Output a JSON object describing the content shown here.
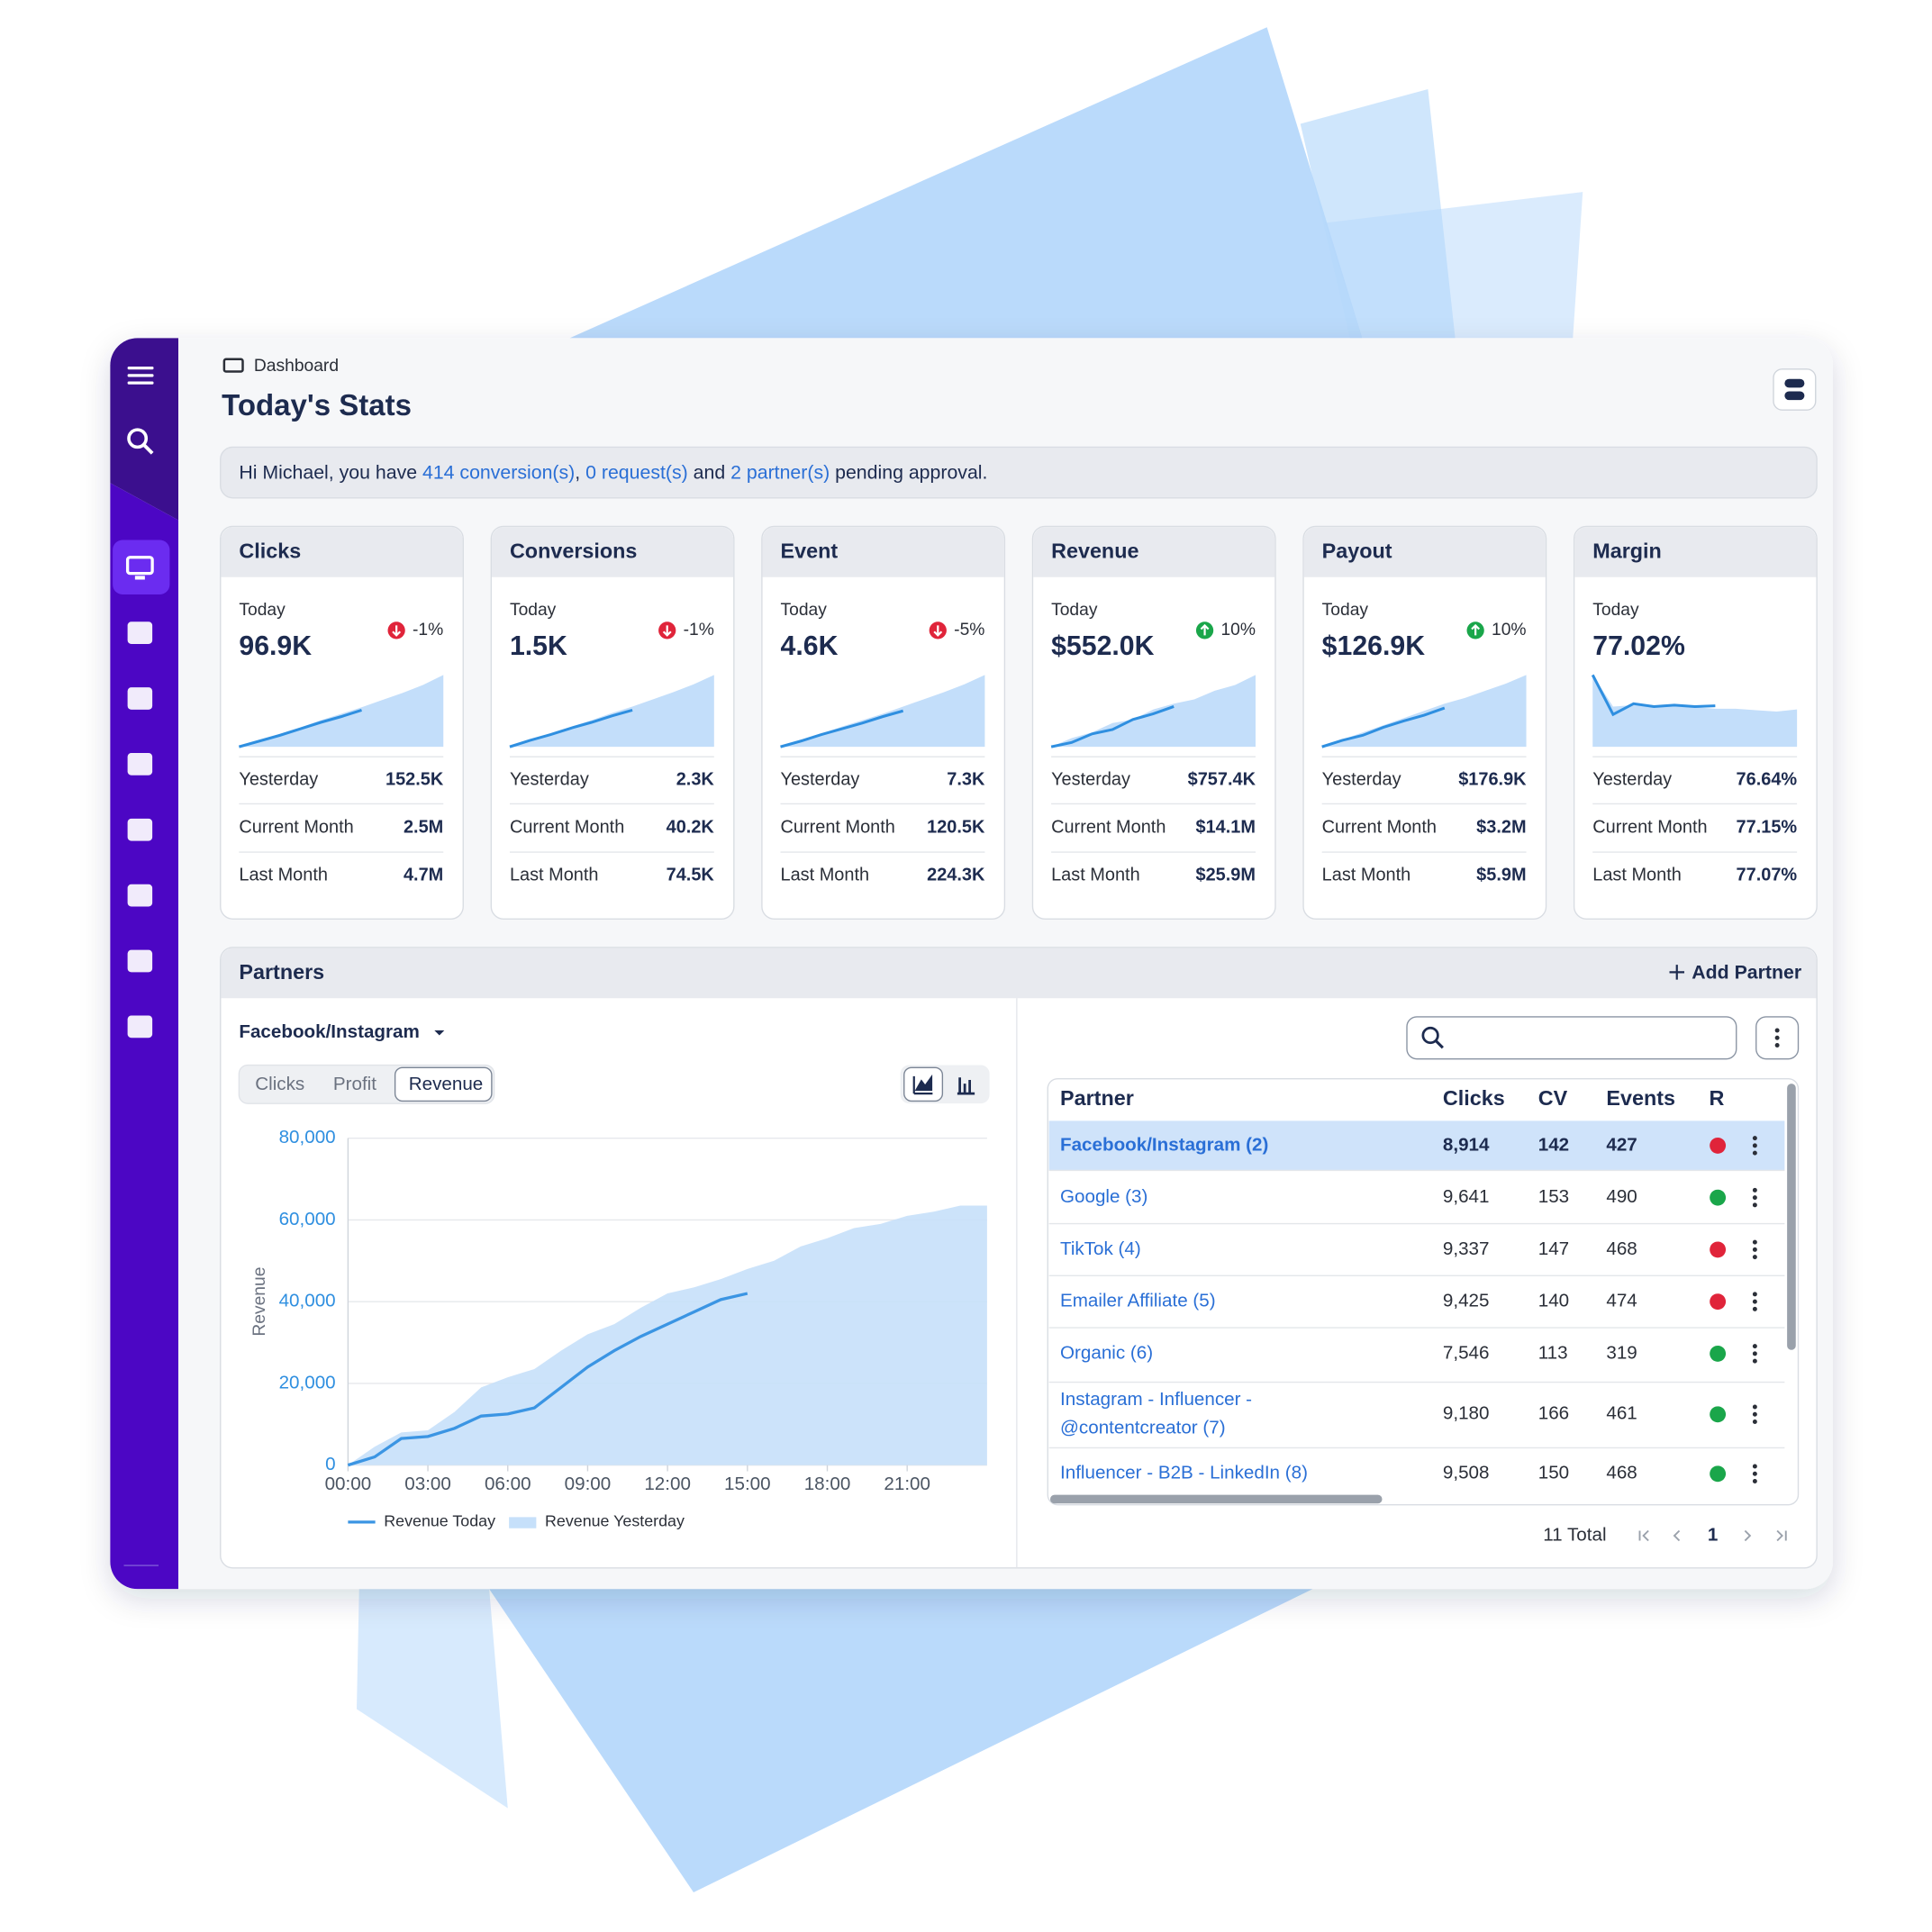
{
  "breadcrumb": "Dashboard",
  "title": "Today's Stats",
  "notice": [
    {
      "text": "Hi Michael, you have ",
      "link": false
    },
    {
      "text": "414 conversion(s)",
      "link": true
    },
    {
      "text": ", ",
      "link": false
    },
    {
      "text": "0 request(s)",
      "link": true
    },
    {
      "text": " and ",
      "link": false
    },
    {
      "text": "2 partner(s)",
      "link": true
    },
    {
      "text": " pending approval.",
      "link": false
    }
  ],
  "stat_cards": [
    {
      "title": "Clicks",
      "today_label": "Today",
      "today": "96.9K",
      "change": "-1%",
      "trend": "down",
      "rows": [
        {
          "label": "Yesterday",
          "value": "152.5K"
        },
        {
          "label": "Current Month",
          "value": "2.5M"
        },
        {
          "label": "Last Month",
          "value": "4.7M"
        }
      ],
      "spark_yesterday": [
        0,
        9,
        18,
        27,
        37,
        46,
        55,
        65,
        75,
        86,
        100
      ],
      "spark_today": [
        0,
        8,
        16,
        25,
        34,
        42,
        51
      ]
    },
    {
      "title": "Conversions",
      "today_label": "Today",
      "today": "1.5K",
      "change": "-1%",
      "trend": "down",
      "rows": [
        {
          "label": "Yesterday",
          "value": "2.3K"
        },
        {
          "label": "Current Month",
          "value": "40.2K"
        },
        {
          "label": "Last Month",
          "value": "74.5K"
        }
      ],
      "spark_yesterday": [
        0,
        9,
        19,
        28,
        37,
        47,
        56,
        66,
        76,
        87,
        100
      ],
      "spark_today": [
        0,
        9,
        17,
        26,
        34,
        43,
        51
      ]
    },
    {
      "title": "Event",
      "today_label": "Today",
      "today": "4.6K",
      "change": "-5%",
      "trend": "down",
      "rows": [
        {
          "label": "Yesterday",
          "value": "7.3K"
        },
        {
          "label": "Current Month",
          "value": "120.5K"
        },
        {
          "label": "Last Month",
          "value": "224.3K"
        }
      ],
      "spark_yesterday": [
        0,
        9,
        18,
        28,
        37,
        46,
        56,
        66,
        76,
        87,
        100
      ],
      "spark_today": [
        0,
        8,
        17,
        25,
        33,
        42,
        50
      ]
    },
    {
      "title": "Revenue",
      "today_label": "Today",
      "today": "$552.0K",
      "change": "10%",
      "trend": "up",
      "rows": [
        {
          "label": "Yesterday",
          "value": "$757.4K"
        },
        {
          "label": "Current Month",
          "value": "$14.1M"
        },
        {
          "label": "Last Month",
          "value": "$25.9M"
        }
      ],
      "spark_yesterday": [
        0,
        12,
        20,
        33,
        38,
        52,
        60,
        66,
        78,
        86,
        100
      ],
      "spark_today": [
        0,
        6,
        18,
        24,
        38,
        46,
        56
      ]
    },
    {
      "title": "Payout",
      "today_label": "Today",
      "today": "$126.9K",
      "change": "10%",
      "trend": "up",
      "rows": [
        {
          "label": "Yesterday",
          "value": "$176.9K"
        },
        {
          "label": "Current Month",
          "value": "$3.2M"
        },
        {
          "label": "Last Month",
          "value": "$5.9M"
        }
      ],
      "spark_yesterday": [
        0,
        10,
        20,
        30,
        40,
        50,
        60,
        68,
        78,
        88,
        100
      ],
      "spark_today": [
        0,
        9,
        16,
        27,
        36,
        44,
        54
      ]
    },
    {
      "title": "Margin",
      "today_label": "Today",
      "today": "77.02%",
      "rows": [
        {
          "label": "Yesterday",
          "value": "76.64%"
        },
        {
          "label": "Current Month",
          "value": "77.15%"
        },
        {
          "label": "Last Month",
          "value": "77.07%"
        }
      ],
      "spark_yesterday": [
        100,
        56,
        58,
        56,
        57,
        55,
        53,
        53,
        51,
        49,
        52
      ],
      "spark_today": [
        100,
        45,
        60,
        56,
        58,
        56,
        57
      ]
    }
  ],
  "partners": {
    "title": "Partners",
    "add_button": "Add Partner",
    "selected_partner": "Facebook/Instagram",
    "tabs": [
      "Clicks",
      "Profit",
      "Revenue"
    ],
    "active_tab": 2,
    "table": {
      "columns": [
        "Partner",
        "Clicks",
        "CV",
        "Events",
        "R"
      ],
      "selected_row": 0,
      "rows": [
        {
          "partner": [
            "Facebook/Instagram (2)"
          ],
          "cells": [
            "8,914",
            "142",
            "427"
          ],
          "trend": "down"
        },
        {
          "partner": [
            "Google (3)"
          ],
          "cells": [
            "9,641",
            "153",
            "490"
          ],
          "trend": "up"
        },
        {
          "partner": [
            "TikTok (4)"
          ],
          "cells": [
            "9,337",
            "147",
            "468"
          ],
          "trend": "down"
        },
        {
          "partner": [
            "Emailer Affiliate (5)"
          ],
          "cells": [
            "9,425",
            "140",
            "474"
          ],
          "trend": "down"
        },
        {
          "partner": [
            "Organic (6)"
          ],
          "cells": [
            "7,546",
            "113",
            "319"
          ],
          "trend": "up"
        },
        {
          "partner": [
            "Instagram - Influencer -",
            "@contentcreator (7)"
          ],
          "cells": [
            "9,180",
            "166",
            "461"
          ],
          "trend": "up"
        },
        {
          "partner": [
            "Influencer - B2B - LinkedIn (8)"
          ],
          "cells": [
            "9,508",
            "150",
            "468"
          ],
          "trend": "up"
        }
      ]
    },
    "total": "11 Total",
    "page": "1"
  },
  "chart_data": {
    "type": "line",
    "y_label": "Revenue",
    "x": [
      0,
      1,
      2,
      3,
      4,
      5,
      6,
      7,
      8,
      9,
      10,
      11,
      12,
      13,
      14,
      15,
      16,
      17,
      18,
      19,
      20,
      21,
      22,
      23,
      24
    ],
    "xlim": [
      0,
      24
    ],
    "xticks": [
      {
        "value": 0,
        "label": "00:00"
      },
      {
        "value": 3,
        "label": "03:00"
      },
      {
        "value": 6,
        "label": "06:00"
      },
      {
        "value": 9,
        "label": "09:00"
      },
      {
        "value": 12,
        "label": "12:00"
      },
      {
        "value": 15,
        "label": "15:00"
      },
      {
        "value": 18,
        "label": "18:00"
      },
      {
        "value": 21,
        "label": "21:00"
      }
    ],
    "ylim": [
      0,
      80000
    ],
    "yticks": [
      0,
      {
        "value": 20000,
        "label": "20,000"
      },
      {
        "value": 40000,
        "label": "40,000"
      },
      {
        "value": 60000,
        "label": "60,000"
      },
      {
        "value": 80000,
        "label": "80,000"
      }
    ],
    "grid": true,
    "series": [
      {
        "name": "Revenue Today",
        "color": "#3b95e3",
        "style": "line",
        "values": [
          0,
          2000,
          6500,
          7000,
          9000,
          12000,
          12500,
          14000,
          19000,
          24000,
          28000,
          31500,
          34500,
          37500,
          40500,
          42000,
          null,
          null,
          null,
          null,
          null,
          null,
          null,
          null,
          null
        ]
      },
      {
        "name": "Revenue Yesterday",
        "color": "#c6e0fa",
        "style": "area",
        "values": [
          0,
          4500,
          8000,
          8500,
          13000,
          19000,
          21500,
          23500,
          28000,
          32000,
          34500,
          38500,
          42000,
          43500,
          45500,
          48000,
          50000,
          53500,
          55500,
          58000,
          59000,
          61000,
          62000,
          63500,
          63500
        ]
      }
    ]
  }
}
